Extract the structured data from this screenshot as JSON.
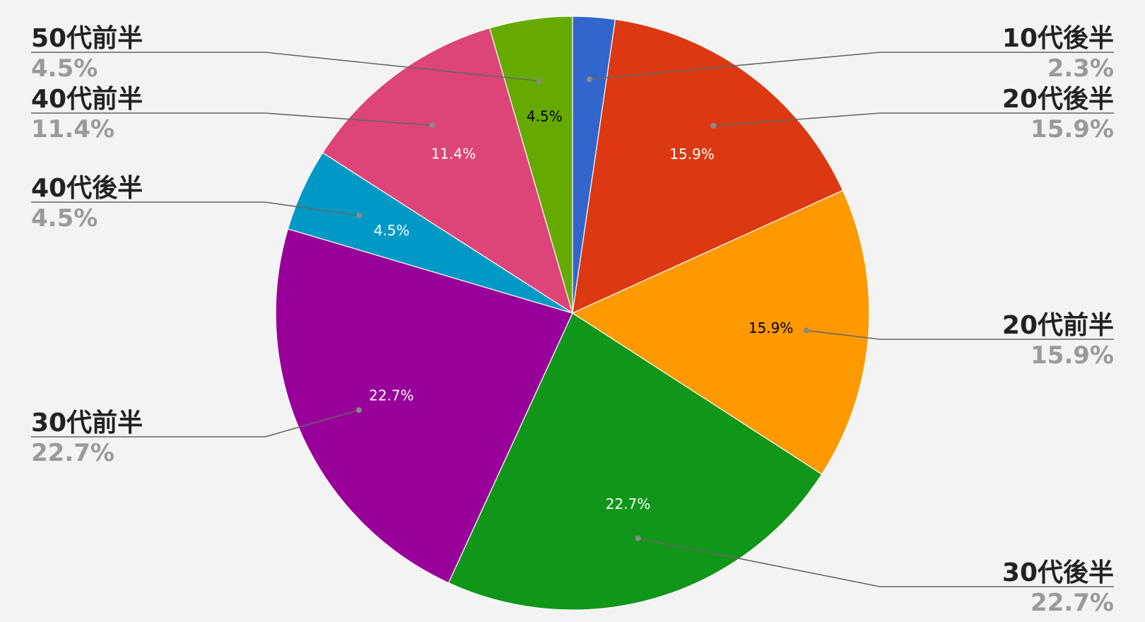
{
  "chart_data": {
    "type": "pie",
    "categories": [
      "10代後半",
      "20代後半",
      "20代前半",
      "30代後半",
      "30代前半",
      "40代後半",
      "40代前半",
      "50代前半"
    ],
    "values": [
      2.3,
      15.9,
      15.9,
      22.7,
      22.7,
      4.5,
      11.4,
      4.5
    ],
    "value_labels": [
      "2.3%",
      "15.9%",
      "15.9%",
      "22.7%",
      "22.7%",
      "4.5%",
      "11.4%",
      "4.5%"
    ],
    "slice_label_colors": [
      "#ffffff",
      "#ffffff",
      "#000000",
      "#ffffff",
      "#ffffff",
      "#ffffff",
      "#ffffff",
      "#000000"
    ],
    "colors": [
      "#3366cc",
      "#dc3912",
      "#ff9900",
      "#109618",
      "#990099",
      "#0099c6",
      "#dd4477",
      "#66aa00"
    ],
    "start_angle": "12 o'clock",
    "direction": "clockwise",
    "legend": "callout labels outside the pie",
    "show_inside_labels_min_percent": 4
  }
}
